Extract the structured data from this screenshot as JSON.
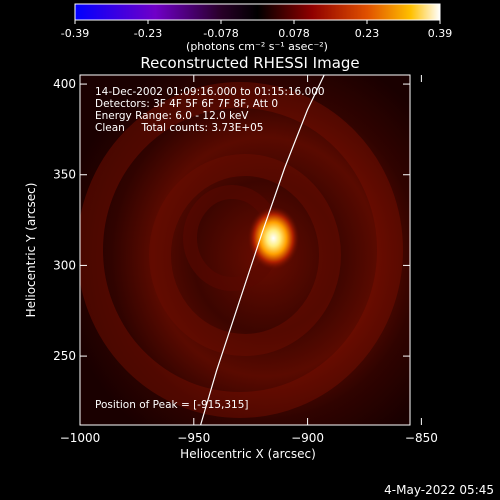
{
  "colorbar": {
    "ticks": [
      "-0.39",
      "-0.23",
      "-0.078",
      "0.078",
      "0.23",
      "0.39"
    ],
    "units": "(photons cm⁻² s⁻¹ asec⁻²)"
  },
  "chart_data": {
    "type": "heatmap",
    "title": "Reconstructed RHESSI Image",
    "xlabel": "Heliocentric X (arcsec)",
    "ylabel": "Heliocentric Y (arcsec)",
    "xlim": [
      -1000,
      -855
    ],
    "ylim": [
      212,
      405
    ],
    "x_ticks": [
      -1000,
      -950,
      -900,
      -850
    ],
    "x_tick_labels": [
      "−1000",
      "−950",
      "−900",
      "−850"
    ],
    "y_ticks": [
      250,
      300,
      350,
      400
    ],
    "y_tick_labels": [
      "250",
      "300",
      "350",
      "400"
    ],
    "color_range": [
      -0.39,
      0.39
    ],
    "colormap": "Rainbow/hot (blue→purple→black→red→yellow→white)",
    "peak": [
      -915,
      315
    ],
    "limb_curve": {
      "x": [
        -947,
        -940,
        -930,
        -920,
        -910,
        -900,
        -890
      ],
      "y": [
        212,
        242,
        280,
        318,
        354,
        386,
        412
      ]
    },
    "annotations": [
      "14-Dec-2002 01:09:16.000 to 01:15:16.000",
      "Detectors: 3F 4F 5F 6F 7F 8F, Att 0",
      "Energy Range: 6.0 - 12.0 keV",
      "Clean     Total counts: 3.73E+05"
    ],
    "peak_label": "Position of Peak = [-915,315]"
  },
  "footer": {
    "date": "4-May-2022 05:45"
  }
}
